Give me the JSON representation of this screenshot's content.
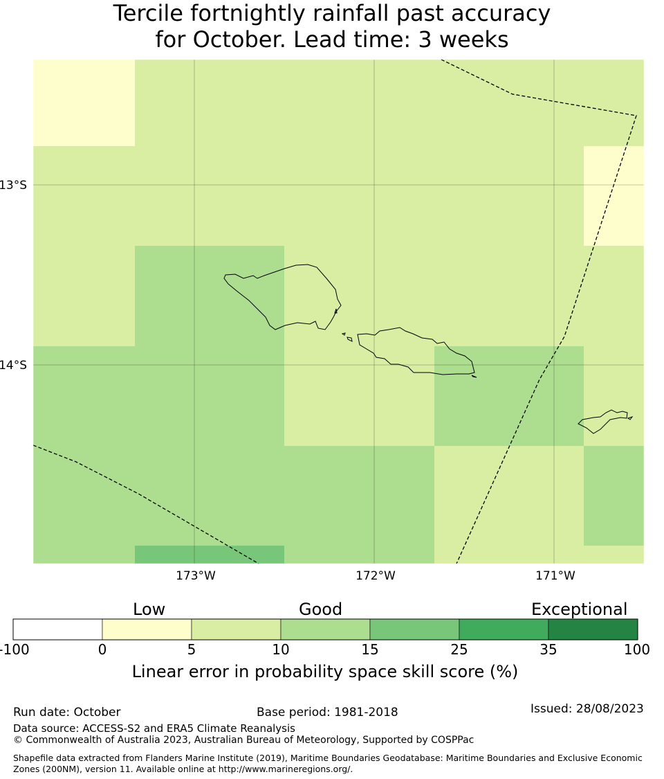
{
  "title": {
    "line1": "Tercile fortnightly rainfall past accuracy",
    "line2": "for October. Lead time: 3 weeks"
  },
  "map": {
    "lon_labels": [
      "173°W",
      "172°W",
      "171°W"
    ],
    "lat_labels": [
      "13°S",
      "14°S"
    ]
  },
  "colorbar": {
    "categories": [
      "Low",
      "Good",
      "Exceptional"
    ],
    "ticks": [
      "-100",
      "0",
      "5",
      "10",
      "15",
      "25",
      "35",
      "100"
    ],
    "colors": [
      "#ffffff",
      "#fefecc",
      "#d9eda3",
      "#addd8e",
      "#78c679",
      "#41ab5d",
      "#238443"
    ],
    "label": "Linear error in probability space skill score (%)"
  },
  "footer": {
    "run_date": "Run date: October",
    "base_period": "Base period: 1981-2018",
    "issued": "Issued: 28/08/2023",
    "data_source": "Data source: ACCESS-S2 and ERA5 Climate Reanalysis",
    "copyright": "© Commonwealth of Australia 2023, Australian Bureau of Meteorology, Supported by COSPPac",
    "shapefile": "Shapefile data extracted from Flanders Marine Institute (2019), Maritime Boundaries Geodatabase: Maritime Boundaries and Exclusive Economic Zones (200NM), version 11. Available online at http://www.marineregions.org/."
  }
}
